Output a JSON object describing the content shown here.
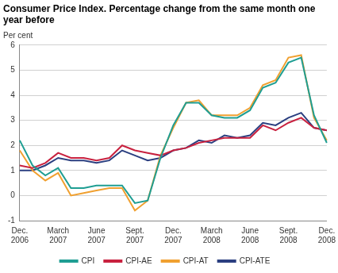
{
  "chart_data": {
    "type": "line",
    "title": "Consumer Price Index. Percentage change from the same month one year before",
    "y_label": "Per cent",
    "categories": [
      "Dec. 2006",
      null,
      null,
      "March 2007",
      null,
      null,
      "June 2007",
      null,
      null,
      "Sept. 2007",
      null,
      null,
      "Dec. 2007",
      null,
      null,
      "March 2008",
      null,
      null,
      "June 2008",
      null,
      null,
      "Sept. 2008",
      null,
      null,
      "Dec. 2008"
    ],
    "series": [
      {
        "name": "CPI",
        "color": "#1f9e93",
        "values": [
          2.2,
          1.2,
          0.8,
          1.1,
          0.3,
          0.3,
          0.4,
          0.4,
          0.4,
          -0.3,
          -0.2,
          1.5,
          2.8,
          3.7,
          3.7,
          3.2,
          3.1,
          3.1,
          3.4,
          4.3,
          4.5,
          5.3,
          5.5,
          3.2,
          2.1
        ]
      },
      {
        "name": "CPI-AE",
        "color": "#c8213f",
        "values": [
          1.2,
          1.1,
          1.3,
          1.7,
          1.5,
          1.5,
          1.4,
          1.5,
          2.0,
          1.8,
          1.7,
          1.6,
          1.8,
          1.9,
          2.1,
          2.2,
          2.3,
          2.3,
          2.3,
          2.8,
          2.6,
          2.9,
          3.1,
          2.7,
          2.6
        ]
      },
      {
        "name": "CPI-AT",
        "color": "#f0a030",
        "values": [
          1.8,
          1.0,
          0.6,
          0.9,
          0.0,
          0.1,
          0.2,
          0.3,
          0.3,
          -0.6,
          -0.2,
          1.6,
          2.7,
          3.7,
          3.8,
          3.2,
          3.2,
          3.2,
          3.5,
          4.4,
          4.6,
          5.5,
          5.6,
          3.1,
          2.2
        ]
      },
      {
        "name": "CPI-ATE",
        "color": "#2b3f80",
        "values": [
          1.0,
          1.0,
          1.2,
          1.5,
          1.4,
          1.4,
          1.3,
          1.4,
          1.8,
          1.6,
          1.4,
          1.5,
          1.8,
          1.9,
          2.2,
          2.1,
          2.4,
          2.3,
          2.4,
          2.9,
          2.8,
          3.1,
          3.3,
          2.7,
          2.6
        ]
      }
    ],
    "ylim": [
      -1,
      6
    ],
    "yticks": [
      -1,
      0,
      1,
      2,
      3,
      4,
      5,
      6
    ],
    "grid": true,
    "legend": "bottom"
  }
}
